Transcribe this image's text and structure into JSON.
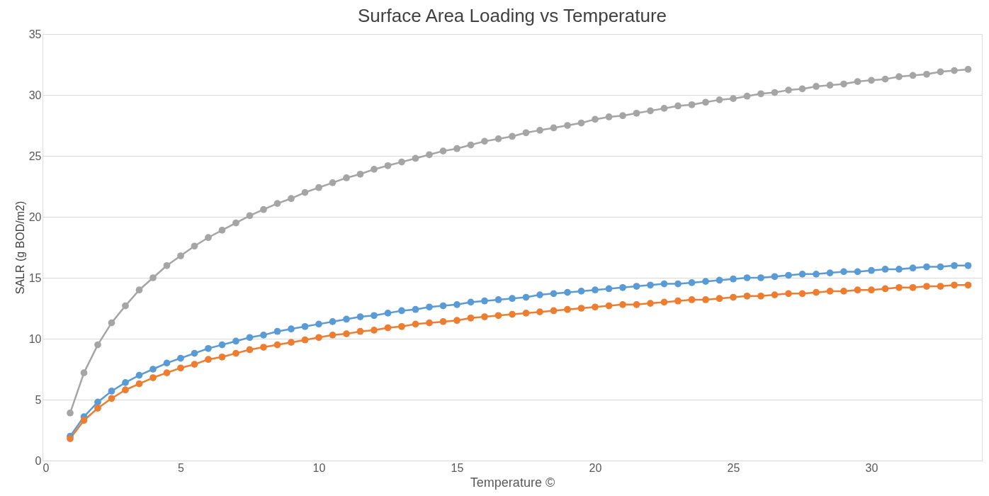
{
  "chart_data": {
    "type": "line",
    "title": "Surface Area Loading vs Temperature",
    "xlabel": "Temperature ©",
    "ylabel": "SALR (g BOD/m2)",
    "x": [
      1,
      1.5,
      2,
      2.5,
      3,
      3.5,
      4,
      4.5,
      5,
      5.5,
      6,
      6.5,
      7,
      7.5,
      8,
      8.5,
      9,
      9.5,
      10,
      10.5,
      11,
      11.5,
      12,
      12.5,
      13,
      13.5,
      14,
      14.5,
      15,
      15.5,
      16,
      16.5,
      17,
      17.5,
      18,
      18.5,
      19,
      19.5,
      20,
      20.5,
      21,
      21.5,
      22,
      22.5,
      23,
      23.5,
      24,
      24.5,
      25,
      25.5,
      26,
      26.5,
      27,
      27.5,
      28,
      28.5,
      29,
      29.5,
      30,
      30.5,
      31,
      31.5,
      32,
      32.5,
      33,
      33.5
    ],
    "series": [
      {
        "color": "#5b9bd5",
        "values": [
          2.0,
          3.6,
          4.8,
          5.7,
          6.4,
          7.0,
          7.5,
          8.0,
          8.4,
          8.8,
          9.2,
          9.5,
          9.8,
          10.1,
          10.3,
          10.6,
          10.8,
          11.0,
          11.2,
          11.4,
          11.6,
          11.8,
          11.9,
          12.1,
          12.3,
          12.4,
          12.6,
          12.7,
          12.8,
          13.0,
          13.1,
          13.2,
          13.3,
          13.4,
          13.6,
          13.7,
          13.8,
          13.9,
          14.0,
          14.1,
          14.2,
          14.3,
          14.4,
          14.5,
          14.5,
          14.6,
          14.7,
          14.8,
          14.9,
          15.0,
          15.0,
          15.1,
          15.2,
          15.3,
          15.3,
          15.4,
          15.5,
          15.5,
          15.6,
          15.7,
          15.7,
          15.8,
          15.9,
          15.9,
          16.0,
          16.0
        ]
      },
      {
        "color": "#ed7d31",
        "values": [
          1.8,
          3.3,
          4.3,
          5.1,
          5.8,
          6.3,
          6.8,
          7.2,
          7.6,
          7.9,
          8.3,
          8.5,
          8.8,
          9.1,
          9.3,
          9.5,
          9.7,
          9.9,
          10.1,
          10.3,
          10.4,
          10.6,
          10.7,
          10.9,
          11.0,
          11.2,
          11.3,
          11.4,
          11.5,
          11.7,
          11.8,
          11.9,
          12.0,
          12.1,
          12.2,
          12.3,
          12.4,
          12.5,
          12.6,
          12.7,
          12.8,
          12.8,
          12.9,
          13.0,
          13.1,
          13.2,
          13.2,
          13.3,
          13.4,
          13.5,
          13.5,
          13.6,
          13.7,
          13.7,
          13.8,
          13.9,
          13.9,
          14.0,
          14.0,
          14.1,
          14.2,
          14.2,
          14.3,
          14.3,
          14.4,
          14.4
        ]
      },
      {
        "color": "#a5a5a5",
        "values": [
          3.9,
          7.2,
          9.5,
          11.3,
          12.7,
          14.0,
          15.0,
          16.0,
          16.8,
          17.6,
          18.3,
          18.9,
          19.5,
          20.1,
          20.6,
          21.1,
          21.5,
          22.0,
          22.4,
          22.8,
          23.2,
          23.5,
          23.9,
          24.2,
          24.5,
          24.8,
          25.1,
          25.4,
          25.6,
          25.9,
          26.2,
          26.4,
          26.6,
          26.9,
          27.1,
          27.3,
          27.5,
          27.7,
          28.0,
          28.2,
          28.3,
          28.5,
          28.7,
          28.9,
          29.1,
          29.2,
          29.4,
          29.6,
          29.7,
          29.9,
          30.1,
          30.2,
          30.4,
          30.5,
          30.7,
          30.8,
          30.9,
          31.1,
          31.2,
          31.3,
          31.5,
          31.6,
          31.7,
          31.9,
          32.0,
          32.1
        ]
      }
    ],
    "xlim": [
      0,
      34
    ],
    "xticks": [
      0,
      5,
      10,
      15,
      20,
      25,
      30
    ],
    "ylim": [
      0,
      35
    ],
    "yticks": [
      0,
      5,
      10,
      15,
      20,
      25,
      30,
      35
    ],
    "grid": "y",
    "legend": false,
    "marker": "circle",
    "line_style": "solid"
  }
}
